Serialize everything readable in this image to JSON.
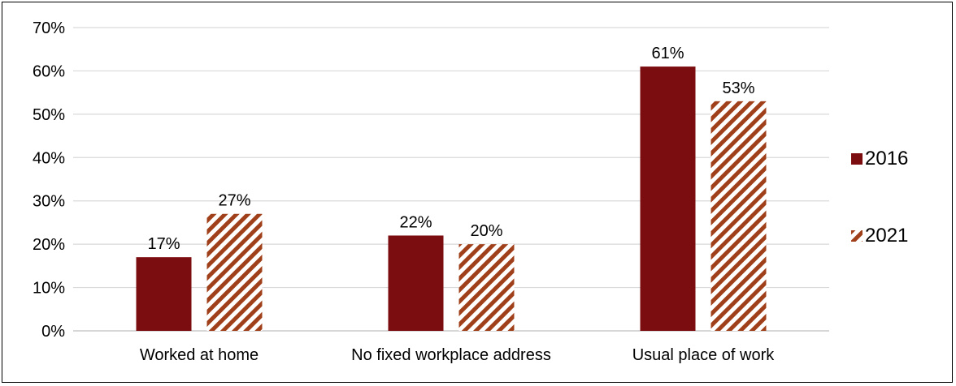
{
  "chart_data": {
    "type": "bar",
    "categories": [
      "Worked at home",
      "No fixed workplace address",
      "Usual place of work"
    ],
    "series": [
      {
        "name": "2016",
        "values": [
          17,
          22,
          61
        ],
        "labels": [
          "17%",
          "22%",
          "61%"
        ],
        "color": "#7b0c0f",
        "fill": "solid"
      },
      {
        "name": "2021",
        "values": [
          27,
          20,
          53
        ],
        "labels": [
          "27%",
          "20%",
          "53%"
        ],
        "color": "#a0401a",
        "fill": "diagonal-stripes"
      }
    ],
    "ylim": [
      0,
      70
    ],
    "yticks": [
      "0%",
      "10%",
      "20%",
      "30%",
      "40%",
      "50%",
      "60%",
      "70%"
    ],
    "grid": true,
    "legend_position": "right",
    "title": "",
    "xlabel": "",
    "ylabel": ""
  }
}
